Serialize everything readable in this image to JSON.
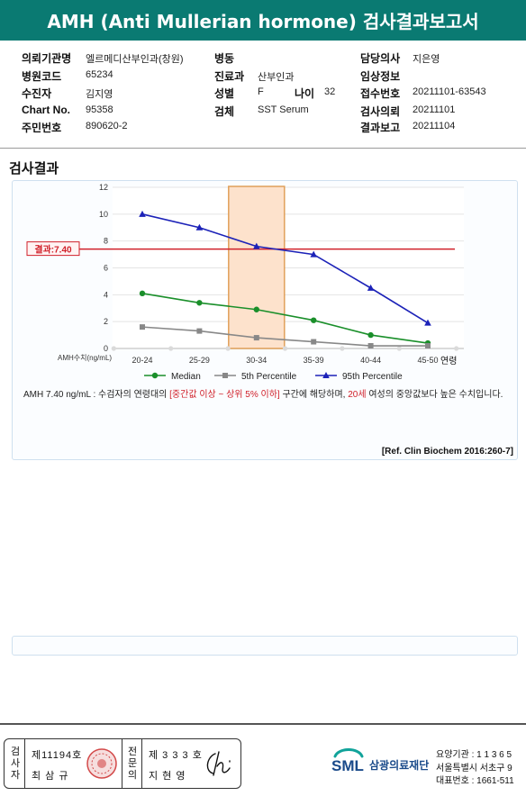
{
  "report": {
    "title": "AMH (Anti Mullerian hormone) 검사결과보고서"
  },
  "info": {
    "institution_label": "의뢰기관명",
    "institution": "엘르메디산부인과(창원)",
    "hospital_code_label": "병원코드",
    "hospital_code": "65234",
    "recipient_label": "수진자",
    "recipient": "김지영",
    "chart_no_label": "Chart No.",
    "chart_no": "95358",
    "resident_no_label": "주민번호",
    "resident_no": "890620-2",
    "ward_label": "병동",
    "ward": "",
    "department_label": "진료과",
    "department": "산부인과",
    "sex_label": "성별",
    "sex": "F",
    "age_label": "나이",
    "age": "32",
    "specimen_label": "검체",
    "specimen": "SST Serum",
    "doctor_label": "담당의사",
    "doctor": "지은영",
    "clinical_label": "임상정보",
    "clinical": "",
    "receipt_no_label": "접수번호",
    "receipt_no": "20211101-63543",
    "request_date_label": "검사의뢰",
    "request_date": "20211101",
    "report_date_label": "결과보고",
    "report_date": "20211104"
  },
  "results": {
    "section_title": "검사결과",
    "comment_prefix": "AMH  7.40 ng/mL : 수검자의 연령대의 ",
    "comment_highlight": "[중간값 이상 ~ 상위 5% 이하]",
    "comment_middle": " 구간에 해당하며, ",
    "comment_age": "20세",
    "comment_suffix": " 여성의 중앙값보다 높은 수치입니다.",
    "reference": "[Ref. Clin Biochem 2016:260-7]"
  },
  "chart_data": {
    "type": "line",
    "categories": [
      "20-24",
      "25-29",
      "30-34",
      "35-39",
      "40-44",
      "45-50"
    ],
    "series": [
      {
        "name": "Median",
        "values": [
          4.1,
          3.4,
          2.9,
          2.1,
          1.0,
          0.4
        ],
        "color": "#1a8f2a",
        "marker": "circle"
      },
      {
        "name": "5th Percentile",
        "values": [
          1.6,
          1.3,
          0.8,
          0.5,
          0.2,
          0.2
        ],
        "color": "#888888",
        "marker": "square"
      },
      {
        "name": "95th Percentile",
        "values": [
          10.0,
          9.0,
          7.6,
          7.0,
          4.5,
          1.9
        ],
        "color": "#1c22b8",
        "marker": "triangle"
      }
    ],
    "highlight_category": "30-34",
    "result_value": 7.4,
    "result_label": "결과:7.40",
    "ylabel": "AMH수치(ng/mL)",
    "xlabel": "연령",
    "ylim": [
      0,
      12
    ],
    "yticks": [
      "0",
      "2",
      "4",
      "6",
      "8",
      "10",
      "12"
    ],
    "grid": "horizontal",
    "legend": "bottom"
  },
  "footer": {
    "exam_vertical": "검사자",
    "exam_no": "제11194호",
    "exam_name": "최 삼 규",
    "specialist_vertical": "전문의",
    "specialist_no": "제 3 3 3 호",
    "specialist_name": "지 현 영",
    "org_logo": "SML",
    "org_name": "삼광의료재단",
    "org_line1": "요양기관 : 1 1 3 6 5",
    "org_line2": "서울특별시 서초구 9",
    "org_line3": "대표번호 : 1661-511"
  },
  "colors": {
    "header": "#0a7a72",
    "accent_red": "#d0202a",
    "highlight_fill": "#fde2cc"
  }
}
